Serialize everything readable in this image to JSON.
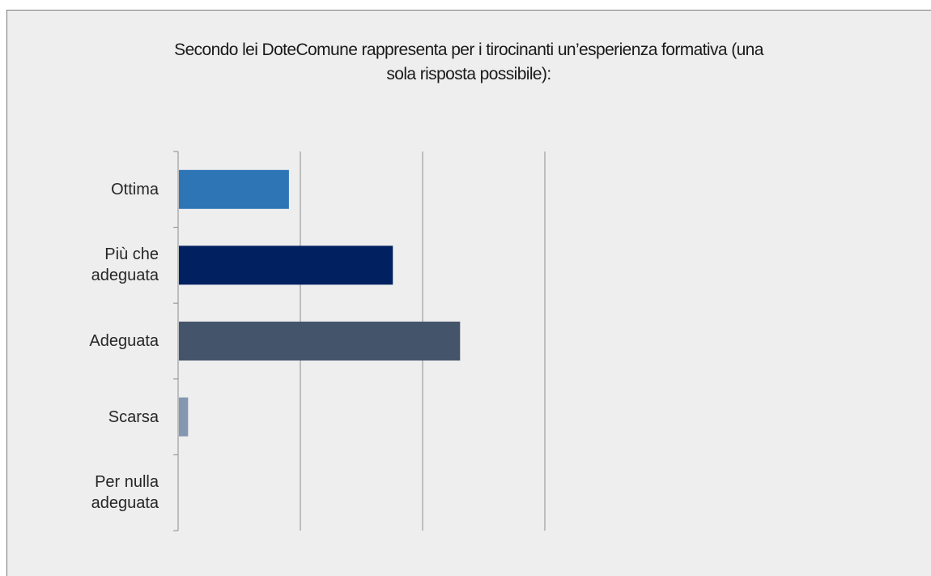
{
  "chart_data": {
    "type": "bar",
    "orientation": "horizontal",
    "title": "Secondo lei DoteComune rappresenta per i tirocinanti un’esperienza formativa (una sola risposta possibile):",
    "categories": [
      "Ottima",
      "Più che adeguata",
      "Adeguata",
      "Scarsa",
      "Per nulla adeguata"
    ],
    "values": [
      18,
      35,
      46,
      1.5,
      0
    ],
    "colors": [
      "#2e75b6",
      "#002060",
      "#44546a",
      "#8497b0",
      "#8497b0"
    ],
    "xlim": [
      0,
      60
    ],
    "x_gridlines": [
      20,
      40,
      60
    ],
    "grid": true,
    "legend": "none",
    "x_tick_labels_visible": false
  }
}
